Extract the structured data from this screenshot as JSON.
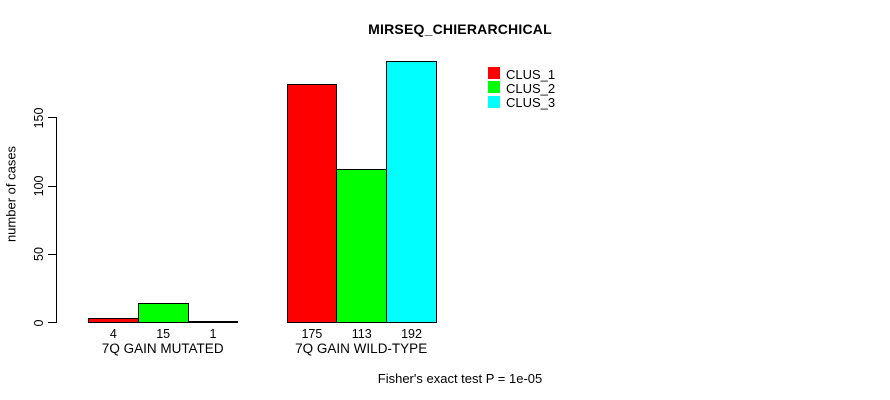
{
  "chart_data": {
    "type": "bar",
    "title": "MIRSEQ_CHIERARCHICAL",
    "ylabel": "number of cases",
    "xlabel": "",
    "ylim": [
      0,
      200
    ],
    "yticks": [
      0,
      50,
      100,
      150
    ],
    "grid": false,
    "legend_position": "top-right",
    "categories": [
      "7Q GAIN MUTATED",
      "7Q GAIN WILD-TYPE"
    ],
    "series": [
      {
        "name": "CLUS_1",
        "color": "#ff0000",
        "values": [
          4,
          175
        ]
      },
      {
        "name": "CLUS_2",
        "color": "#00ff00",
        "values": [
          15,
          113
        ]
      },
      {
        "name": "CLUS_3",
        "color": "#00ffff",
        "values": [
          1,
          192
        ]
      }
    ],
    "annotation": "Fisher's exact test P = 1e-05",
    "colors": {
      "background": "#ffffff",
      "axis": "#000000",
      "text": "#000000"
    }
  }
}
